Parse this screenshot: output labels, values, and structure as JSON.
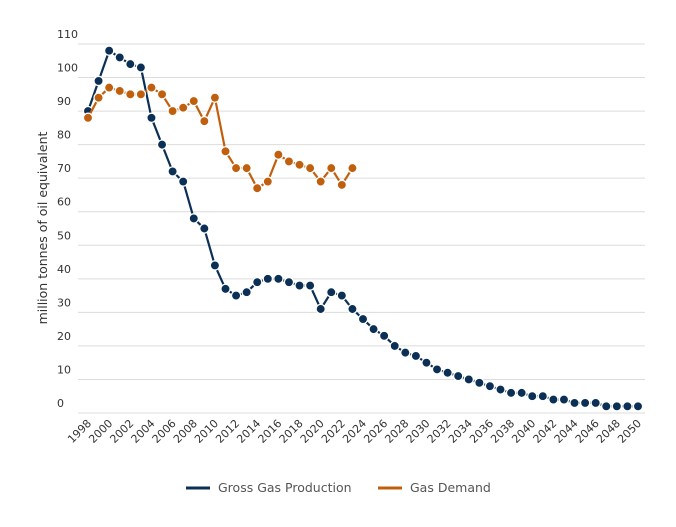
{
  "chart_data": {
    "type": "line",
    "title": "",
    "xlabel": "",
    "ylabel": "million tonnes of oil equivalent",
    "ylim": [
      0,
      110
    ],
    "yticks": [
      0,
      10,
      20,
      30,
      40,
      50,
      60,
      70,
      80,
      90,
      100,
      110
    ],
    "xlim": [
      1998,
      2050
    ],
    "xticks": [
      1998,
      2000,
      2002,
      2004,
      2006,
      2008,
      2010,
      2012,
      2014,
      2016,
      2018,
      2020,
      2022,
      2024,
      2026,
      2028,
      2030,
      2032,
      2034,
      2036,
      2038,
      2040,
      2042,
      2044,
      2046,
      2048,
      2050
    ],
    "grid": true,
    "legend_position": "bottom-center",
    "series": [
      {
        "name": "Gross Gas Production",
        "color": "#0b2f55",
        "x": [
          1998,
          1999,
          2000,
          2001,
          2002,
          2003,
          2004,
          2005,
          2006,
          2007,
          2008,
          2009,
          2010,
          2011,
          2012,
          2013,
          2014,
          2015,
          2016,
          2017,
          2018,
          2019,
          2020,
          2021,
          2022,
          2023,
          2024,
          2025,
          2026,
          2027,
          2028,
          2029,
          2030,
          2031,
          2032,
          2033,
          2034,
          2035,
          2036,
          2037,
          2038,
          2039,
          2040,
          2041,
          2042,
          2043,
          2044,
          2045,
          2046,
          2047,
          2048,
          2049,
          2050
        ],
        "values": [
          90,
          99,
          108,
          106,
          104,
          103,
          88,
          80,
          72,
          69,
          58,
          55,
          44,
          37,
          35,
          36,
          39,
          40,
          40,
          39,
          38,
          38,
          31,
          36,
          35,
          31,
          28,
          25,
          23,
          20,
          18,
          17,
          15,
          13,
          12,
          11,
          10,
          9,
          8,
          7,
          6,
          6,
          5,
          5,
          4,
          4,
          3,
          3,
          3,
          2,
          2,
          2,
          2
        ]
      },
      {
        "name": "Gas Demand",
        "color": "#c0600f",
        "x": [
          1998,
          1999,
          2000,
          2001,
          2002,
          2003,
          2004,
          2005,
          2006,
          2007,
          2008,
          2009,
          2010,
          2011,
          2012,
          2013,
          2014,
          2015,
          2016,
          2017,
          2018,
          2019,
          2020,
          2021,
          2022,
          2023
        ],
        "values": [
          88,
          94,
          97,
          96,
          95,
          95,
          97,
          95,
          90,
          91,
          93,
          87,
          94,
          78,
          73,
          73,
          67,
          69,
          77,
          75,
          74,
          73,
          69,
          73,
          68,
          73
        ]
      }
    ]
  }
}
